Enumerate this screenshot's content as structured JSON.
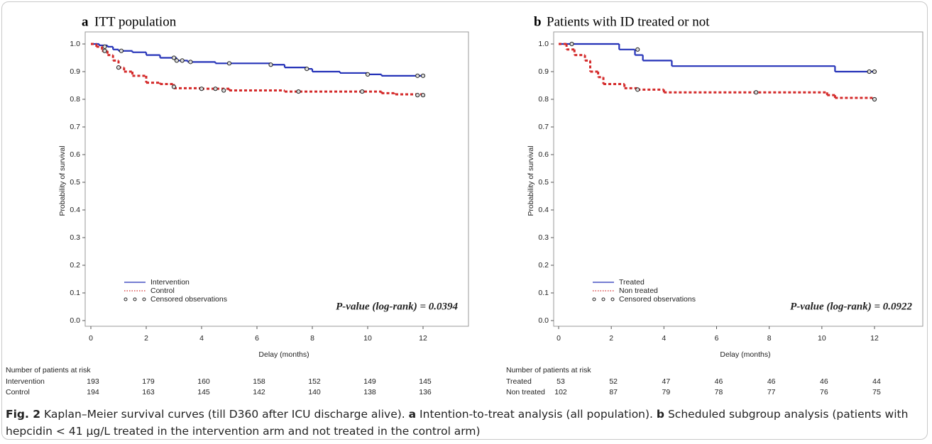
{
  "chart_data": [
    {
      "type": "step",
      "panel": "a",
      "title": "ITT population",
      "xlabel": "Delay (months)",
      "ylabel": "Probability of survival",
      "xlim": [
        0,
        12
      ],
      "xticks": [
        0,
        2,
        4,
        6,
        8,
        10,
        12
      ],
      "ylim": [
        0,
        1
      ],
      "yticks": [
        {
          "value": 0,
          "label": "0.0"
        },
        0.1,
        0.2,
        0.3,
        0.4,
        0.5,
        0.6,
        0.7,
        0.8,
        0.9,
        {
          "value": 1,
          "label": "1.0"
        }
      ],
      "annotation": "P-value (log-rank) = 0.0394",
      "censored_label": "Censored observations",
      "legend": "lower left",
      "series": [
        {
          "name": "Intervention",
          "color": "#2432b8",
          "dash": false,
          "x": [
            0,
            0.3,
            0.6,
            0.8,
            1,
            1.5,
            2,
            2.5,
            3.1,
            3.5,
            4.5,
            6.5,
            7,
            7.8,
            8,
            9,
            10,
            10.5,
            12
          ],
          "values": [
            1.0,
            0.995,
            0.99,
            0.98,
            0.975,
            0.97,
            0.96,
            0.95,
            0.94,
            0.935,
            0.93,
            0.925,
            0.915,
            0.91,
            0.9,
            0.895,
            0.89,
            0.885,
            0.885
          ],
          "censored_x": [
            0.5,
            1.1,
            3,
            3.1,
            3.3,
            3.6,
            5,
            6.5,
            7.8,
            10,
            11.8,
            12
          ],
          "censored_values": [
            0.99,
            0.975,
            0.95,
            0.94,
            0.94,
            0.935,
            0.93,
            0.925,
            0.91,
            0.89,
            0.885,
            0.885
          ]
        },
        {
          "name": "Control",
          "color": "#d42a2a",
          "dash": true,
          "x": [
            0,
            0.2,
            0.4,
            0.6,
            0.8,
            1,
            1.2,
            1.5,
            2,
            2.5,
            3,
            4,
            5,
            7,
            10.5,
            11,
            12
          ],
          "values": [
            1.0,
            0.99,
            0.975,
            0.96,
            0.94,
            0.915,
            0.9,
            0.885,
            0.86,
            0.855,
            0.84,
            0.838,
            0.832,
            0.828,
            0.822,
            0.818,
            0.815
          ],
          "censored_x": [
            0.5,
            1,
            3,
            4,
            4.5,
            4.8,
            7.5,
            9.8,
            11.8,
            12
          ],
          "censored_values": [
            0.975,
            0.915,
            0.845,
            0.838,
            0.838,
            0.832,
            0.828,
            0.828,
            0.815,
            0.815
          ]
        }
      ],
      "risk_table": {
        "title": "Number of patients at risk",
        "rows": [
          {
            "name": "Intervention",
            "values": [
              193,
              179,
              160,
              158,
              152,
              149,
              145
            ]
          },
          {
            "name": "Control",
            "values": [
              194,
              163,
              145,
              142,
              140,
              138,
              136
            ]
          }
        ]
      }
    },
    {
      "type": "step",
      "panel": "b",
      "title": "Patients with ID treated or not",
      "xlabel": "Delay (months)",
      "ylabel": "Probability of survival",
      "xlim": [
        0,
        12
      ],
      "xticks": [
        0,
        2,
        4,
        6,
        8,
        10,
        12
      ],
      "ylim": [
        0,
        1
      ],
      "yticks": [
        {
          "value": 0,
          "label": "0.0"
        },
        0.1,
        0.2,
        0.3,
        0.4,
        0.5,
        0.6,
        0.7,
        0.8,
        0.9,
        {
          "value": 1,
          "label": "1.0"
        }
      ],
      "annotation": "P-value (log-rank) = 0.0922",
      "censored_label": "Censored observations",
      "legend": "lower left",
      "series": [
        {
          "name": "Treated",
          "color": "#2432b8",
          "dash": false,
          "x": [
            0,
            2.3,
            2.9,
            3.2,
            4.3,
            10.5,
            12
          ],
          "values": [
            1.0,
            0.98,
            0.96,
            0.94,
            0.92,
            0.9,
            0.9
          ],
          "censored_x": [
            0.5,
            3,
            11.8,
            12
          ],
          "censored_values": [
            1.0,
            0.98,
            0.9,
            0.9
          ]
        },
        {
          "name": "Non treated",
          "color": "#d42a2a",
          "dash": true,
          "x": [
            0,
            0.3,
            0.6,
            1,
            1.2,
            1.5,
            1.7,
            2.5,
            3,
            4,
            10.2,
            10.5,
            12
          ],
          "values": [
            1.0,
            0.98,
            0.96,
            0.94,
            0.9,
            0.88,
            0.855,
            0.84,
            0.835,
            0.825,
            0.815,
            0.805,
            0.8
          ],
          "censored_x": [
            3,
            7.5,
            12
          ],
          "censored_values": [
            0.835,
            0.825,
            0.8
          ]
        }
      ],
      "risk_table": {
        "title": "Number of patients at risk",
        "rows": [
          {
            "name": "Treated",
            "values": [
              53,
              52,
              47,
              46,
              46,
              46,
              44
            ]
          },
          {
            "name": "Non treated",
            "values": [
              102,
              87,
              79,
              78,
              77,
              76,
              75
            ]
          }
        ]
      }
    }
  ],
  "caption": {
    "figure": "Fig. 2",
    "text": "Kaplan–Meier survival curves (till D360 after ICU discharge alive).",
    "a_label": "a",
    "a_text": "Intention-to-treat analysis (all population).",
    "b_label": "b",
    "b_text": "Scheduled subgroup analysis (patients with hepcidin < 41 µg/L treated in the intervention arm and not treated in the control arm)"
  }
}
